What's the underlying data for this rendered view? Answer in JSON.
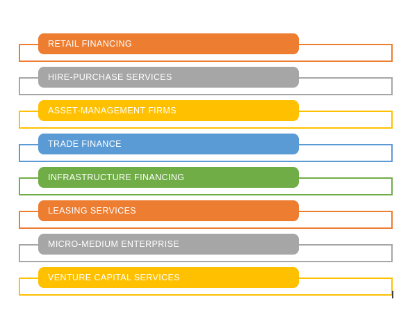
{
  "diagram": {
    "type": "horizontal-list",
    "background": "#ffffff",
    "text_color": "#ffffff",
    "items": [
      {
        "label": "RETAIL FINANCING",
        "color": "#ED7D31"
      },
      {
        "label": "HIRE-PURCHASE SERVICES",
        "color": "#A6A6A6"
      },
      {
        "label": "ASSET-MANAGEMENT FIRMS",
        "color": "#FFC000"
      },
      {
        "label": "TRADE FINANCE",
        "color": "#5B9BD5"
      },
      {
        "label": "INFRASTRUCTURE FINANCING",
        "color": "#70AD47"
      },
      {
        "label": "LEASING SERVICES",
        "color": "#ED7D31"
      },
      {
        "label": "MICRO-MEDIUM ENTERPRISE",
        "color": "#A6A6A6"
      },
      {
        "label": "VENTURE CAPITAL SERVICES",
        "color": "#FFC000"
      }
    ],
    "cursor_mark": "|"
  }
}
